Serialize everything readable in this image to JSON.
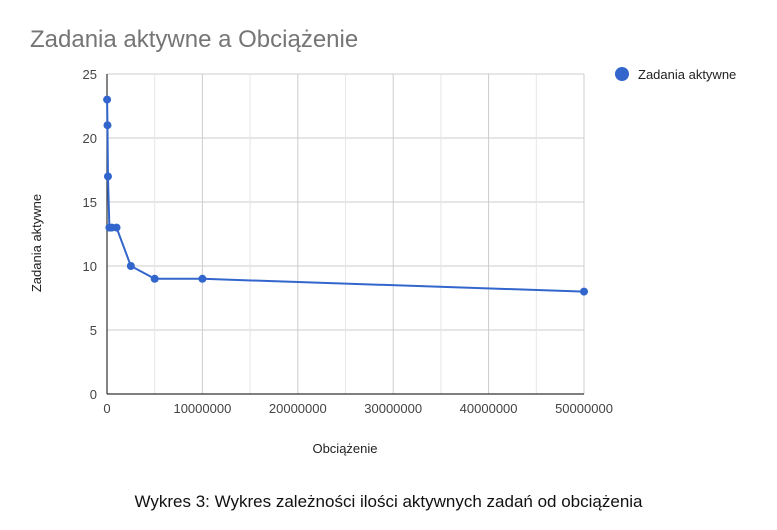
{
  "caption": "Wykres 3: Wykres zależności ilości aktywnych zadań od obciążenia",
  "colors": {
    "series": "#3366cc",
    "grid": "#cccccc",
    "axis": "#333333",
    "text": "#444444",
    "title": "#757575"
  },
  "chart_data": {
    "type": "line",
    "title": "Zadania aktywne a Obciążenie",
    "xlabel": "Obciążenie",
    "ylabel": "Zadania aktywne",
    "xlim": [
      0,
      50000000
    ],
    "ylim": [
      0,
      25
    ],
    "xticks": [
      "0",
      "10000000",
      "20000000",
      "30000000",
      "40000000",
      "50000000"
    ],
    "xtick_values": [
      0,
      10000000,
      20000000,
      30000000,
      40000000,
      50000000
    ],
    "yticks": [
      "0",
      "5",
      "10",
      "15",
      "20",
      "25"
    ],
    "ytick_values": [
      0,
      5,
      10,
      15,
      20,
      25
    ],
    "grid": true,
    "legend_position": "top-right",
    "series": [
      {
        "name": "Zadania aktywne",
        "color": "#3366cc",
        "x": [
          10000,
          50000,
          100000,
          250000,
          500000,
          1000000,
          2500000,
          5000000,
          10000000,
          50000000
        ],
        "y": [
          23,
          21,
          17,
          13,
          13,
          13,
          10,
          9,
          9,
          8
        ]
      }
    ]
  }
}
